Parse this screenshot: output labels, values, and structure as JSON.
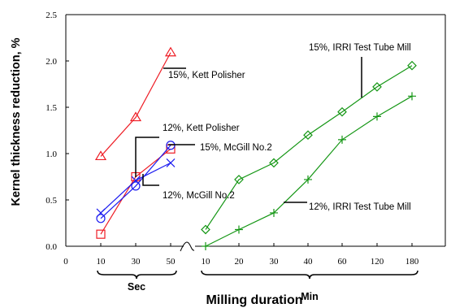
{
  "chart_data": {
    "type": "line",
    "title": "",
    "xlabel": "Milling duration",
    "ylabel": "Kernel thickness reduction, %",
    "ylim": [
      0,
      2.5
    ],
    "yticks": [
      "0.0",
      "0.5",
      "1.0",
      "1.5",
      "2.0",
      "2.5"
    ],
    "xtick_labels": [
      "0",
      "10",
      "30",
      "50",
      "10",
      "20",
      "30",
      "40",
      "60",
      "120",
      "180"
    ],
    "groups": [
      {
        "label": "Sec",
        "ticks": [
          "10",
          "30",
          "50"
        ]
      },
      {
        "label": "Min",
        "ticks": [
          "10",
          "20",
          "30",
          "40",
          "60",
          "120",
          "180"
        ]
      }
    ],
    "grid": false,
    "legend": "none",
    "series": [
      {
        "name": "15%, Kett Polisher",
        "color": "#ee1c24",
        "marker": "triangle",
        "group": "Sec",
        "x": [
          10,
          30,
          50
        ],
        "values": [
          0.97,
          1.39,
          2.09
        ]
      },
      {
        "name": "12%, Kett Polisher",
        "color": "#ee1c24",
        "marker": "square",
        "group": "Sec",
        "x": [
          10,
          30,
          50
        ],
        "values": [
          0.13,
          0.75,
          1.05
        ]
      },
      {
        "name": "15%, McGill No.2",
        "color": "#1c1cf0",
        "marker": "circle",
        "group": "Sec",
        "x": [
          10,
          30,
          50
        ],
        "values": [
          0.3,
          0.65,
          1.09
        ]
      },
      {
        "name": "12%, McGill No.2",
        "color": "#1c1cf0",
        "marker": "x",
        "group": "Sec",
        "x": [
          10,
          30,
          50
        ],
        "values": [
          0.36,
          0.71,
          0.9
        ]
      },
      {
        "name": "15%, IRRI Test Tube Mill",
        "color": "#149614",
        "marker": "diamond",
        "group": "Min",
        "x": [
          10,
          20,
          30,
          40,
          60,
          120,
          180
        ],
        "values": [
          0.18,
          0.72,
          0.9,
          1.2,
          1.45,
          1.72,
          1.95
        ]
      },
      {
        "name": "12%, IRRI Test Tube Mill",
        "color": "#149614",
        "marker": "plus",
        "group": "Min",
        "x": [
          10,
          20,
          30,
          40,
          60,
          120,
          180
        ],
        "values": [
          0.0,
          0.18,
          0.36,
          0.72,
          1.15,
          1.4,
          1.62
        ]
      }
    ]
  }
}
